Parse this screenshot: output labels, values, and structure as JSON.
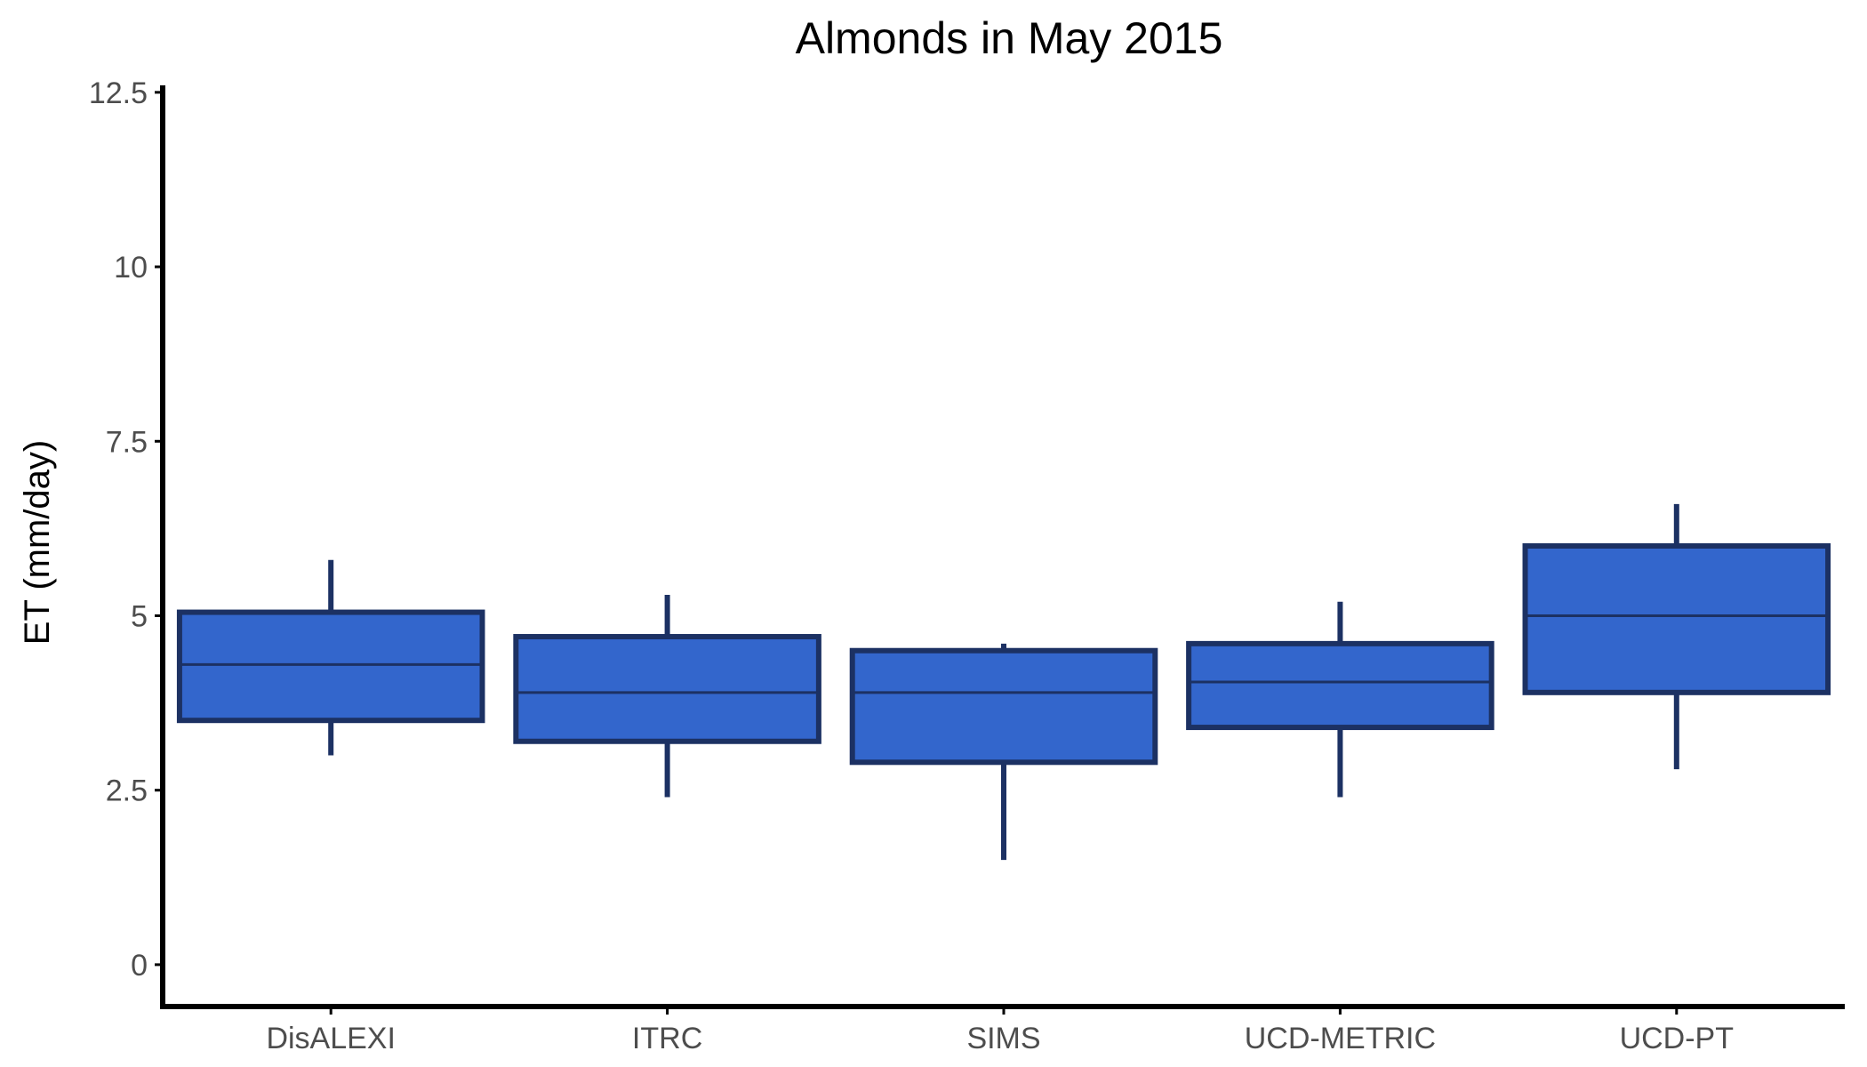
{
  "chart_data": {
    "type": "boxplot",
    "title": "Almonds in May 2015",
    "xlabel": "",
    "ylabel": "ET (mm/day)",
    "ylim": [
      -0.6,
      12.6
    ],
    "yticks": [
      0,
      2.5,
      5,
      7.5,
      10,
      12.5
    ],
    "ytick_labels": [
      "0",
      "2.5",
      "5",
      "7.5",
      "10",
      "12.5"
    ],
    "categories": [
      "DisALEXI",
      "ITRC",
      "SIMS",
      "UCD-METRIC",
      "UCD-PT"
    ],
    "boxes": [
      {
        "category": "DisALEXI",
        "whisker_low": 3.0,
        "q1": 3.5,
        "median": 4.3,
        "q3": 5.05,
        "whisker_high": 5.8
      },
      {
        "category": "ITRC",
        "whisker_low": 2.4,
        "q1": 3.2,
        "median": 3.9,
        "q3": 4.7,
        "whisker_high": 5.3
      },
      {
        "category": "SIMS",
        "whisker_low": 1.5,
        "q1": 2.9,
        "median": 3.9,
        "q3": 4.5,
        "whisker_high": 4.6
      },
      {
        "category": "UCD-METRIC",
        "whisker_low": 2.4,
        "q1": 3.4,
        "median": 4.05,
        "q3": 4.6,
        "whisker_high": 5.2
      },
      {
        "category": "UCD-PT",
        "whisker_low": 2.8,
        "q1": 3.9,
        "median": 5.0,
        "q3": 6.0,
        "whisker_high": 6.6
      }
    ],
    "colors": {
      "fill": "#3366cc",
      "stroke": "#1c3163",
      "axis": "#000000",
      "text": "#4d4d4d"
    },
    "grid": false,
    "legend": "none"
  }
}
